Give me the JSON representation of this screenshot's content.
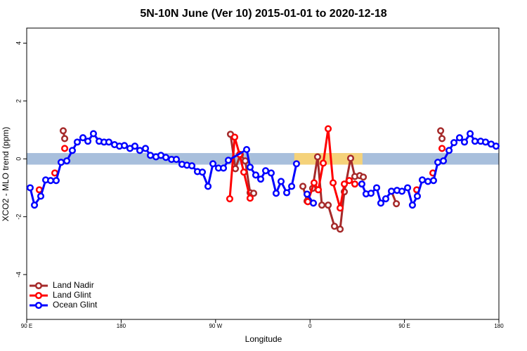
{
  "chart_data": {
    "type": "line",
    "title": "5N-10N June (Ver 10)   2015-01-01 to 2020-12-18",
    "x_label": "Longitude",
    "y_label": "XCO2 - MLO trend (ppm)",
    "xlim": [
      90,
      540
    ],
    "ylim": [
      -5.55,
      4.52
    ],
    "xticks": [
      {
        "value": 90,
        "label": "90 E"
      },
      180,
      {
        "value": 270,
        "label": "90 W"
      },
      {
        "value": 360,
        "label": "0"
      },
      {
        "value": 450,
        "label": "90 E"
      },
      {
        "value": 540,
        "label": "180"
      }
    ],
    "yticks": [
      -4,
      -2,
      0,
      2,
      4
    ],
    "legend": "bottom-left",
    "zero_band": {
      "ylim": [
        -0.2,
        0.2
      ],
      "color": "#a8bfdc",
      "land": [
        [
          345,
          410
        ]
      ],
      "land_color": "#f5d27a"
    },
    "series": [
      {
        "name": "Land Nadir",
        "color": "#a52a2a",
        "x": [
          124.8,
          126.2,
          null,
          284.2,
          288.9,
          293.6,
          298.3,
          302.9,
          306.3,
          null,
          353.2,
          357.2,
          362.5,
          367.2,
          371.3,
          377.3,
          383.3,
          388.7,
          392.7,
          398.7,
          402.7,
          407.4,
          410.8,
          null,
          437.6,
          442.3,
          null,
          484.5,
          485.8
        ],
        "values": [
          0.97,
          0.7,
          null,
          0.85,
          -0.34,
          0.15,
          -0.07,
          -1.17,
          -1.19,
          null,
          -0.95,
          -1.46,
          -1.02,
          0.07,
          -1.6,
          -1.6,
          -2.33,
          -2.43,
          -1.14,
          0.02,
          -0.61,
          -0.58,
          -0.63,
          null,
          -1.12,
          -1.55,
          null,
          0.97,
          0.7
        ]
      },
      {
        "name": "Land Glint",
        "color": "#ff0000",
        "x": [
          102,
          null,
          116.8,
          null,
          126.2,
          null,
          283.5,
          288.2,
          292.9,
          296.9,
          302.9,
          null,
          357.9,
          363.9,
          367.9,
          372.6,
          377.3,
          382.0,
          388.7,
          392.7,
          397.4,
          402.7,
          null,
          461.7,
          null,
          477.1,
          null,
          485.8
        ],
        "values": [
          -1.07,
          null,
          -0.49,
          null,
          0.36,
          null,
          -1.38,
          0.75,
          0.15,
          -0.46,
          -1.36,
          null,
          -1.48,
          -0.83,
          -1.07,
          -0.15,
          1.04,
          -0.83,
          -1.7,
          -0.87,
          -0.75,
          -0.87,
          null,
          -1.07,
          null,
          -0.49,
          null,
          0.36
        ]
      },
      {
        "name": "Ocean Glint",
        "color": "#0000ff",
        "x": [
          93.3,
          97.4,
          103.4,
          108.1,
          112.8,
          118.1,
          122.8,
          128.2,
          133.5,
          138.2,
          143.6,
          148.3,
          153.6,
          159.0,
          163.7,
          168.3,
          173.7,
          178.4,
          183.1,
          188.4,
          193.1,
          197.8,
          203.2,
          207.9,
          213.2,
          217.9,
          222.6,
          228.0,
          232.6,
          238.0,
          242.7,
          247.4,
          252.7,
          257.4,
          262.8,
          267.5,
          272.8,
          277.5,
          282.2,
          299.6,
          302.9,
          308.3,
          313.0,
          317.7,
          323.0,
          327.7,
          332.4,
          337.8,
          342.5,
          347.1,
          null,
          357.2,
          363.2,
          null,
          409.4,
          413.4,
          418.1,
          423.5,
          427.5,
          432.2,
          437.6,
          442.9,
          447.6,
          453.0,
          457.6,
          462.3,
          467.0,
          472.4,
          477.7,
          481.8,
          487.1,
          492.5,
          497.2,
          502.5,
          507.2,
          512.6,
          517.2,
          522.6,
          527.3,
          532.6,
          537.3
        ],
        "values": [
          -1.0,
          -1.6,
          -1.29,
          -0.73,
          -0.75,
          -0.75,
          -0.12,
          -0.07,
          0.29,
          0.58,
          0.73,
          0.61,
          0.87,
          0.61,
          0.58,
          0.58,
          0.49,
          0.44,
          0.46,
          0.36,
          0.44,
          0.29,
          0.36,
          0.12,
          0.07,
          0.12,
          0.05,
          -0.02,
          -0.02,
          -0.19,
          -0.22,
          -0.24,
          -0.44,
          -0.46,
          -0.95,
          -0.17,
          -0.32,
          -0.32,
          -0.05,
          0.32,
          -0.29,
          -0.56,
          -0.7,
          -0.41,
          -0.49,
          -1.19,
          -0.78,
          -1.17,
          -0.95,
          -0.17,
          null,
          -1.22,
          -1.53,
          null,
          -0.87,
          -1.21,
          -1.19,
          -1.0,
          -1.53,
          -1.38,
          -1.12,
          -1.09,
          -1.12,
          -1.0,
          -1.6,
          -1.29,
          -0.73,
          -0.78,
          -0.75,
          -0.12,
          -0.07,
          0.29,
          0.56,
          0.73,
          0.58,
          0.87,
          0.61,
          0.61,
          0.58,
          0.51,
          0.44
        ]
      }
    ]
  }
}
